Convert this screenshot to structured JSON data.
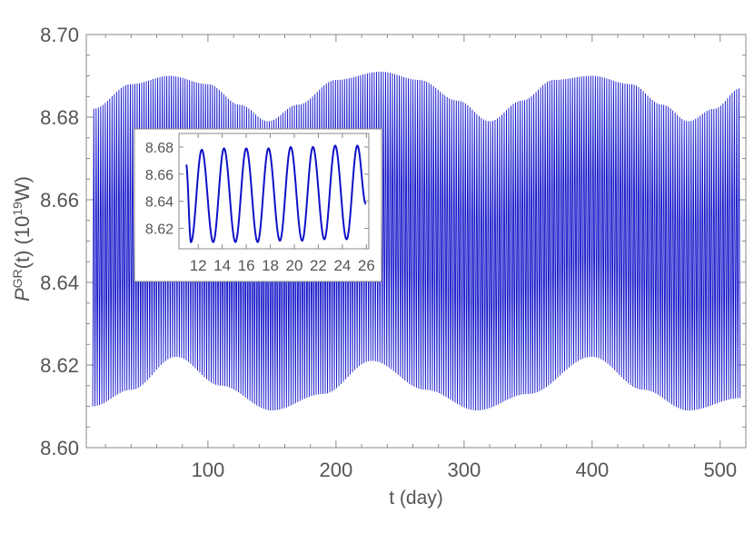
{
  "chart_data": [
    {
      "type": "line",
      "xlabel": "t (day)",
      "ylabel": {
        "main": "P",
        "sup": "GR",
        "after_sup": "(t) (10",
        "exp": "19",
        "unit": "W)"
      },
      "xlim": [
        5,
        520
      ],
      "ylim": [
        8.6,
        8.7
      ],
      "xticks": [
        100,
        200,
        300,
        400,
        500
      ],
      "yticks": [
        8.6,
        8.62,
        8.64,
        8.66,
        8.68,
        8.7
      ],
      "ytick_labels": [
        "8.60",
        "8.62",
        "8.64",
        "8.66",
        "8.68",
        "8.70"
      ],
      "grid": false,
      "line_color": "#1010c8",
      "series": [
        {
          "x_range": [
            10,
            516
          ],
          "carrier_period_days": 1.78,
          "upper_envelope": [
            [
              10,
              8.682
            ],
            [
              40,
              8.688
            ],
            [
              70,
              8.69
            ],
            [
              100,
              8.688
            ],
            [
              125,
              8.683
            ],
            [
              147,
              8.679
            ],
            [
              170,
              8.683
            ],
            [
              200,
              8.689
            ],
            [
              235,
              8.691
            ],
            [
              265,
              8.689
            ],
            [
              295,
              8.684
            ],
            [
              320,
              8.679
            ],
            [
              345,
              8.684
            ],
            [
              370,
              8.689
            ],
            [
              400,
              8.69
            ],
            [
              430,
              8.688
            ],
            [
              455,
              8.683
            ],
            [
              475,
              8.679
            ],
            [
              495,
              8.682
            ],
            [
              516,
              8.687
            ]
          ],
          "lower_envelope": [
            [
              10,
              8.61
            ],
            [
              40,
              8.614
            ],
            [
              75,
              8.622
            ],
            [
              110,
              8.615
            ],
            [
              150,
              8.609
            ],
            [
              190,
              8.613
            ],
            [
              228,
              8.621
            ],
            [
              270,
              8.614
            ],
            [
              310,
              8.609
            ],
            [
              350,
              8.613
            ],
            [
              400,
              8.622
            ],
            [
              440,
              8.614
            ],
            [
              475,
              8.609
            ],
            [
              516,
              8.612
            ]
          ]
        }
      ]
    },
    {
      "type": "line",
      "xlim": [
        10.4,
        26.2
      ],
      "ylim": [
        8.605,
        8.69
      ],
      "xticks": [
        12,
        14,
        16,
        18,
        20,
        22,
        24,
        26
      ],
      "yticks": [
        8.62,
        8.64,
        8.66,
        8.68
      ],
      "ytick_labels": [
        "8.62",
        "8.64",
        "8.66",
        "8.68"
      ],
      "grid": false,
      "line_color": "#1010c8",
      "series": [
        {
          "x_range": [
            11.0,
            25.95
          ],
          "phase_start_value": 8.667,
          "peaks": [
            [
              12.3,
              8.678
            ],
            [
              14.15,
              8.679
            ],
            [
              16.0,
              8.679
            ],
            [
              17.85,
              8.679
            ],
            [
              19.7,
              8.68
            ],
            [
              21.55,
              8.68
            ],
            [
              23.4,
              8.681
            ],
            [
              25.25,
              8.681
            ]
          ],
          "troughs": [
            [
              11.4,
              8.61
            ],
            [
              13.25,
              8.61
            ],
            [
              15.1,
              8.61
            ],
            [
              16.95,
              8.61
            ],
            [
              18.8,
              8.611
            ],
            [
              20.65,
              8.611
            ],
            [
              22.5,
              8.612
            ],
            [
              24.35,
              8.612
            ]
          ],
          "end_value": 8.638
        }
      ]
    }
  ]
}
